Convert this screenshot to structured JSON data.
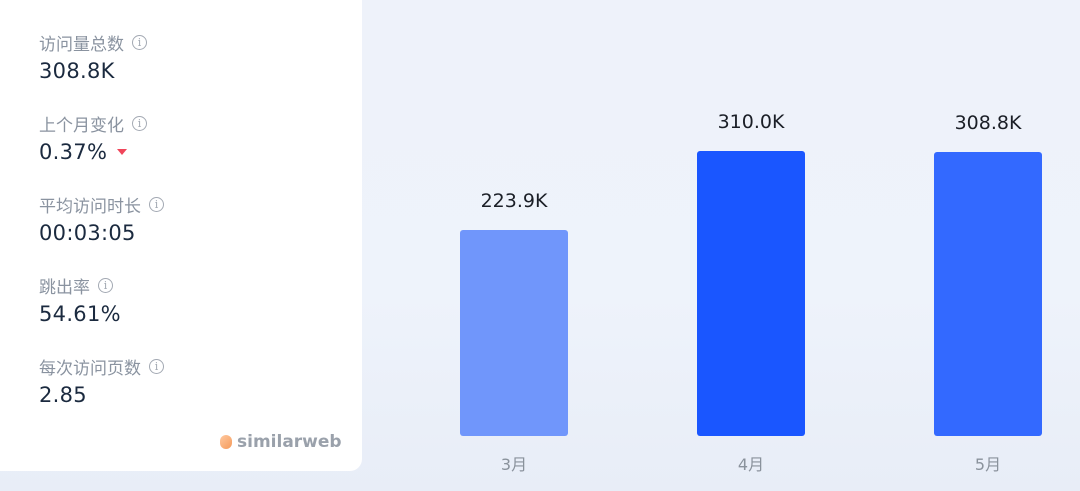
{
  "metrics": [
    {
      "label": "访问量总数",
      "value": "308.8K"
    },
    {
      "label": "上个月变化",
      "value": "0.37%",
      "trend": "down"
    },
    {
      "label": "平均访问时长",
      "value": "00:03:05"
    },
    {
      "label": "跳出率",
      "value": "54.61%"
    },
    {
      "label": "每次访问页数",
      "value": "2.85"
    }
  ],
  "brand": "similarweb",
  "colors": {
    "bar_march": "#7096fb",
    "bar_april": "#1a56ff",
    "bar_may": "#3369ff",
    "trend_down": "#f0455a"
  },
  "chart_data": {
    "type": "bar",
    "categories": [
      "3月",
      "4月",
      "5月"
    ],
    "values": [
      223.9,
      310.0,
      308.8
    ],
    "data_labels": [
      "223.9K",
      "310.0K",
      "308.8K"
    ],
    "unit": "K",
    "ylim": [
      0,
      310
    ],
    "grid": false
  }
}
